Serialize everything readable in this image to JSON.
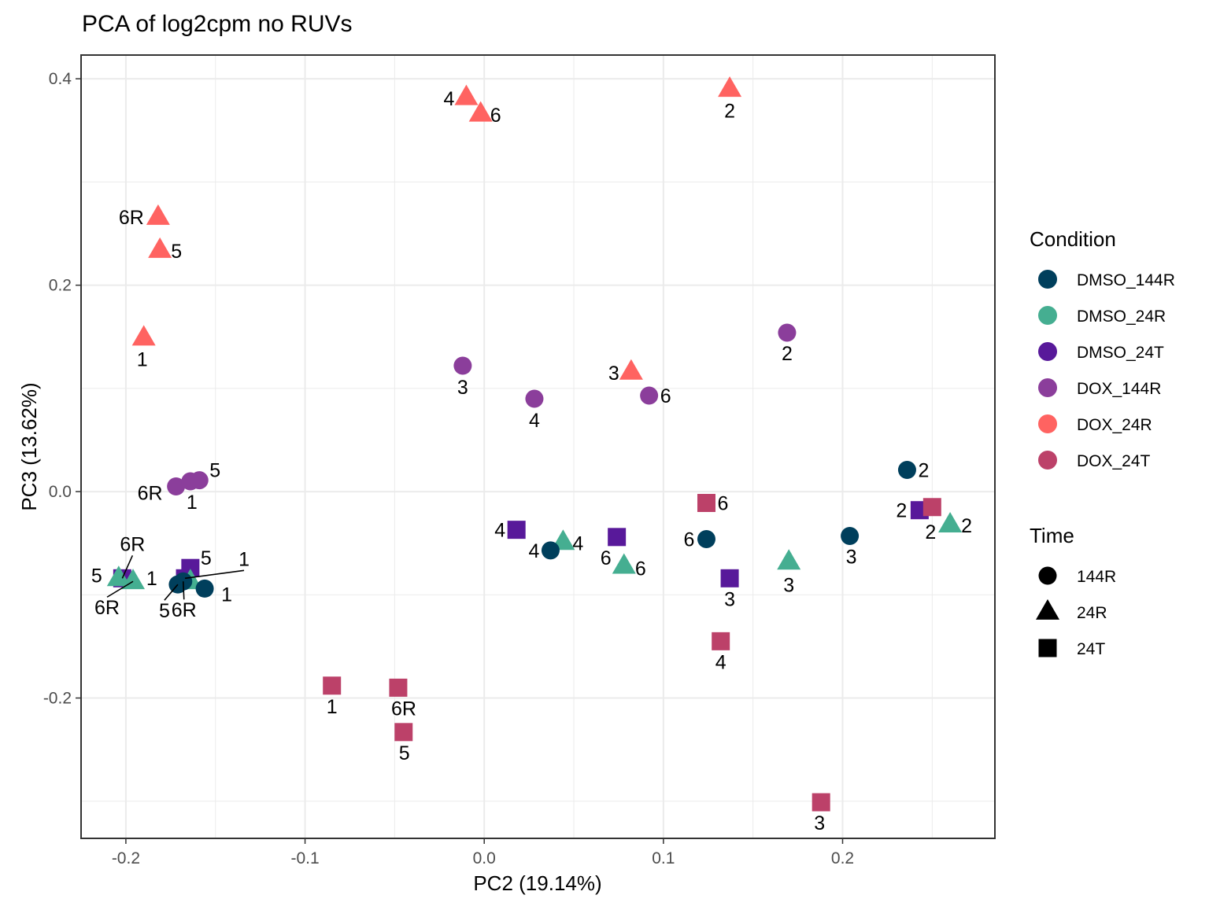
{
  "chart_data": {
    "type": "scatter",
    "title": "PCA of log2cpm no RUVs",
    "xlabel": "PC2 (19.14%)",
    "ylabel": "PC3 (13.62%)",
    "xlim": [
      -0.225,
      0.285
    ],
    "ylim": [
      -0.336,
      0.423
    ],
    "x_ticks": [
      -0.2,
      -0.1,
      0.0,
      0.1,
      0.2
    ],
    "x_tick_labels": [
      "-0.2",
      "-0.1",
      "0.0",
      "0.1",
      "0.2"
    ],
    "y_ticks": [
      -0.2,
      0.0,
      0.2,
      0.4
    ],
    "y_tick_labels": [
      "-0.2",
      "0.0",
      "0.2",
      "0.4"
    ],
    "grid": true,
    "legend_placement": "right",
    "legends": {
      "color": {
        "title": "Condition",
        "entries": [
          {
            "name": "DMSO_144R",
            "color": "#003F5C"
          },
          {
            "name": "DMSO_24R",
            "color": "#45AE91"
          },
          {
            "name": "DMSO_24T",
            "color": "#58199A"
          },
          {
            "name": "DOX_144R",
            "color": "#8B3E9B"
          },
          {
            "name": "DOX_24R",
            "color": "#FF6361"
          },
          {
            "name": "DOX_24T",
            "color": "#BC4169"
          }
        ]
      },
      "shape": {
        "title": "Time",
        "entries": [
          {
            "name": "144R",
            "shape": "circle"
          },
          {
            "name": "24R",
            "shape": "triangle"
          },
          {
            "name": "24T",
            "shape": "square"
          }
        ]
      }
    },
    "series": [
      {
        "name": "DOX_24R",
        "shape": "triangle",
        "points": [
          {
            "label": "4",
            "x": -0.01,
            "y": 0.382
          },
          {
            "label": "6",
            "x": -0.002,
            "y": 0.366
          },
          {
            "label": "2",
            "x": 0.137,
            "y": 0.39
          },
          {
            "label": "6R",
            "x": -0.182,
            "y": 0.266
          },
          {
            "label": "5",
            "x": -0.181,
            "y": 0.234
          },
          {
            "label": "1",
            "x": -0.19,
            "y": 0.149
          },
          {
            "label": "3",
            "x": 0.082,
            "y": 0.116
          }
        ]
      },
      {
        "name": "DOX_144R",
        "shape": "circle",
        "points": [
          {
            "label": "3",
            "x": -0.012,
            "y": 0.122
          },
          {
            "label": "4",
            "x": 0.028,
            "y": 0.09
          },
          {
            "label": "6",
            "x": 0.092,
            "y": 0.093
          },
          {
            "label": "2",
            "x": 0.169,
            "y": 0.154
          },
          {
            "label": "6R",
            "x": -0.172,
            "y": 0.005
          },
          {
            "label": "1",
            "x": -0.164,
            "y": 0.01
          },
          {
            "label": "5",
            "x": -0.159,
            "y": 0.011
          }
        ]
      },
      {
        "name": "DMSO_24T",
        "shape": "square",
        "points": [
          {
            "label": "4",
            "x": 0.018,
            "y": -0.037
          },
          {
            "label": "6",
            "x": 0.074,
            "y": -0.044
          },
          {
            "label": "2",
            "x": 0.243,
            "y": -0.018
          },
          {
            "label": "3",
            "x": 0.137,
            "y": -0.084
          },
          {
            "label": "5",
            "x": -0.164,
            "y": -0.074
          },
          {
            "label": "6R",
            "x": -0.202,
            "y": -0.084
          },
          {
            "label": "1",
            "x": -0.167,
            "y": -0.084
          }
        ]
      },
      {
        "name": "DOX_24T",
        "shape": "square",
        "points": [
          {
            "label": "6",
            "x": 0.124,
            "y": -0.011
          },
          {
            "label": "2",
            "x": 0.25,
            "y": -0.015
          },
          {
            "label": "4",
            "x": 0.132,
            "y": -0.145
          },
          {
            "label": "3",
            "x": 0.188,
            "y": -0.301
          },
          {
            "label": "1",
            "x": -0.085,
            "y": -0.188
          },
          {
            "label": "6R",
            "x": -0.048,
            "y": -0.19
          },
          {
            "label": "5",
            "x": -0.045,
            "y": -0.233
          }
        ]
      },
      {
        "name": "DMSO_24R",
        "shape": "triangle",
        "points": [
          {
            "label": "4",
            "x": 0.044,
            "y": -0.049
          },
          {
            "label": "6",
            "x": 0.078,
            "y": -0.072
          },
          {
            "label": "2",
            "x": 0.26,
            "y": -0.032
          },
          {
            "label": "3",
            "x": 0.17,
            "y": -0.068
          },
          {
            "label": "5",
            "x": -0.204,
            "y": -0.084
          },
          {
            "label": "6R",
            "x": -0.196,
            "y": -0.087
          },
          {
            "label": "1",
            "x": -0.164,
            "y": -0.087
          }
        ]
      },
      {
        "name": "DMSO_144R",
        "shape": "circle",
        "points": [
          {
            "label": "2",
            "x": 0.236,
            "y": 0.021
          },
          {
            "label": "3",
            "x": 0.204,
            "y": -0.043
          },
          {
            "label": "6",
            "x": 0.124,
            "y": -0.046
          },
          {
            "label": "4",
            "x": 0.037,
            "y": -0.057
          },
          {
            "label": "6R",
            "x": -0.168,
            "y": -0.087
          },
          {
            "label": "5",
            "x": -0.171,
            "y": -0.09
          },
          {
            "label": "1",
            "x": -0.156,
            "y": -0.094
          }
        ]
      }
    ]
  }
}
